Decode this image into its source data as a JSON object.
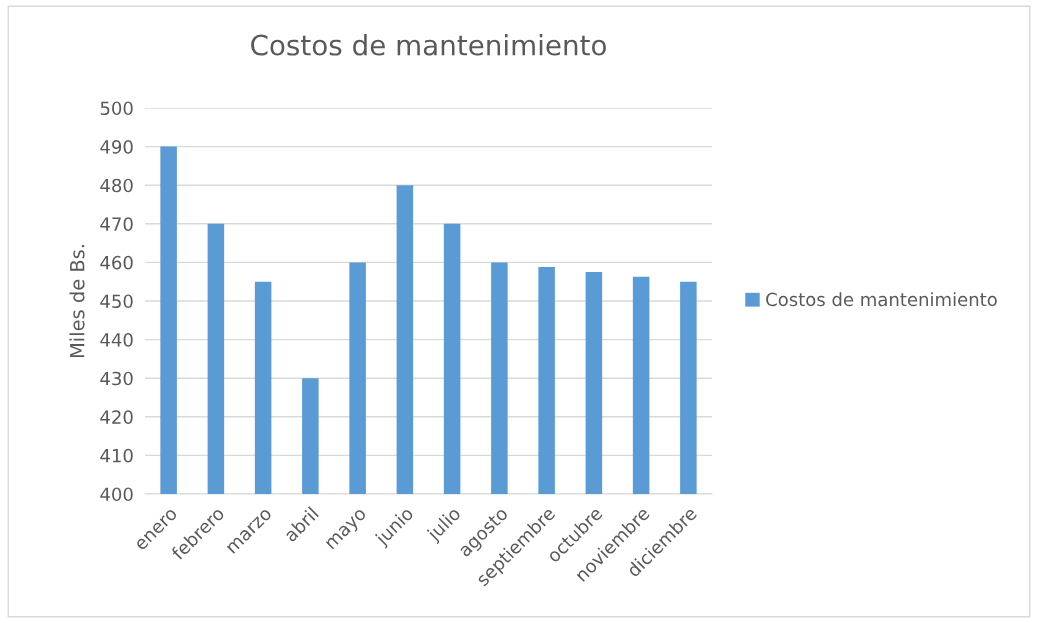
{
  "chart_data": {
    "type": "bar",
    "title": "Costos de mantenimiento",
    "ylabel": "Miles de Bs.",
    "categories": [
      "enero",
      "febrero",
      "marzo",
      "abril",
      "mayo",
      "junio",
      "julio",
      "agosto",
      "septiembre",
      "octubre",
      "noviembre",
      "diciembre"
    ],
    "series": [
      {
        "name": "Costos de mantenimiento",
        "color": "#5b9bd5",
        "values": [
          490,
          470,
          455,
          430,
          460,
          480,
          470,
          460,
          458.8,
          457.5,
          456.3,
          455
        ]
      }
    ],
    "ylim": [
      400,
      500
    ],
    "yticks": [
      400,
      410,
      420,
      430,
      440,
      450,
      460,
      470,
      480,
      490,
      500
    ],
    "grid": "y",
    "legend": "right"
  }
}
